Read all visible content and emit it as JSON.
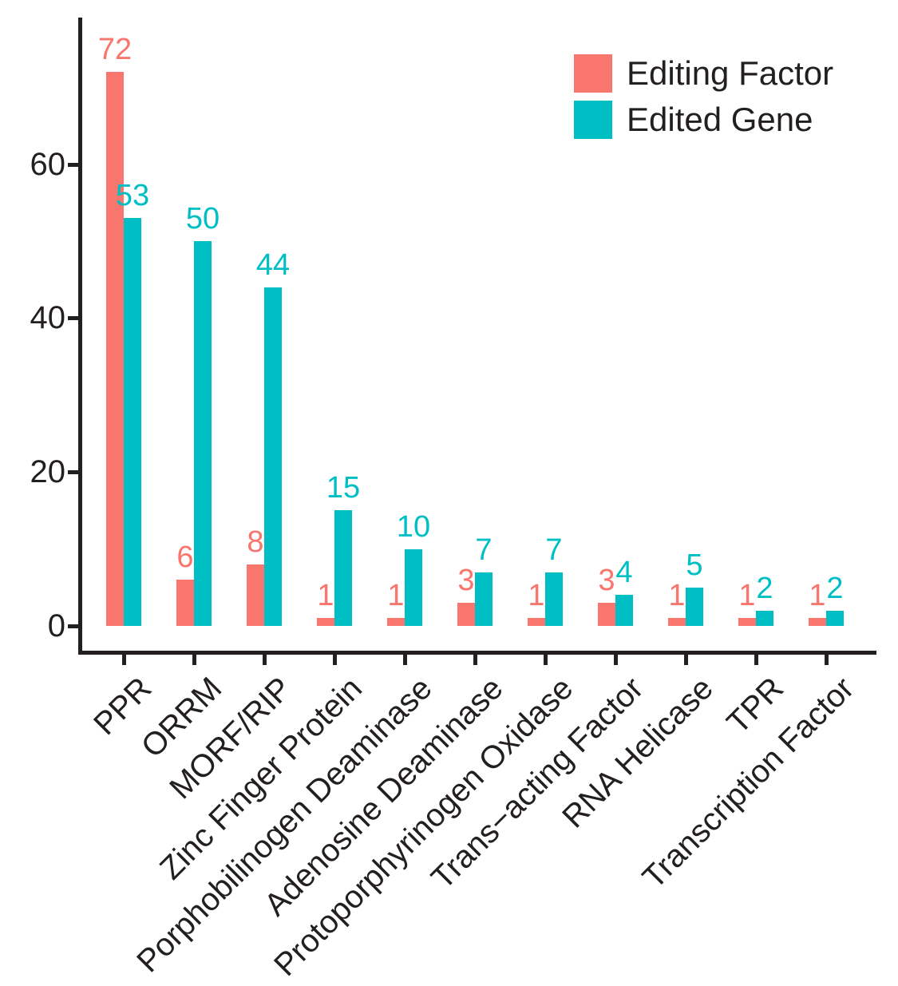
{
  "colors": {
    "editing_factor": "#F8766D",
    "edited_gene": "#00BFC4",
    "axis": "#231F20",
    "background": "#FFFFFF"
  },
  "legend": {
    "position": "top-right",
    "items": [
      {
        "label": "Editing Factor",
        "color_key": "editing_factor"
      },
      {
        "label": "Edited Gene",
        "color_key": "edited_gene"
      }
    ]
  },
  "chart_data": {
    "type": "bar",
    "grouped": true,
    "title": "",
    "xlabel": "",
    "ylabel": "",
    "categories": [
      "PPR",
      "ORRM",
      "MORF/RIP",
      "Zinc Finger Protein",
      "Porphobilinogen Deaminase",
      "Adenosine Deaminase",
      "Protoporphyrinogen Oxidase",
      "Trans−acting Factor",
      "RNA Helicase",
      "TPR",
      "Transcription Factor"
    ],
    "series": [
      {
        "name": "Editing Factor",
        "color": "#F8766D",
        "values": [
          72,
          6,
          8,
          1,
          1,
          3,
          1,
          3,
          1,
          1,
          1
        ]
      },
      {
        "name": "Edited Gene",
        "color": "#00BFC4",
        "values": [
          53,
          50,
          44,
          15,
          10,
          7,
          7,
          4,
          5,
          2,
          2
        ]
      }
    ],
    "ylim": [
      0,
      76
    ],
    "yticks": [
      0,
      20,
      40,
      60
    ],
    "grid": false,
    "bar_value_labels": true,
    "x_tick_label_rotation_deg": 45,
    "legend_position": "top-right"
  }
}
